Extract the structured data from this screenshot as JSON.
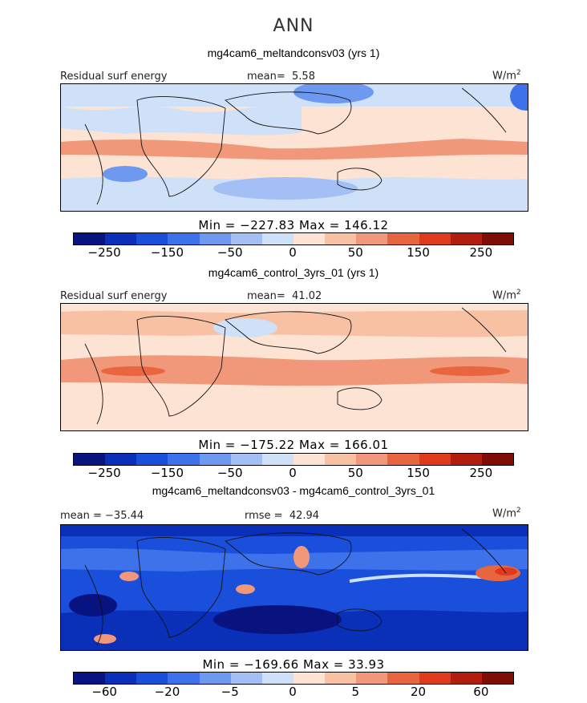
{
  "figure": {
    "title": "ANN"
  },
  "colors": {
    "scale": [
      "#08137f",
      "#0a2fb8",
      "#1a4fdb",
      "#3d72ea",
      "#6e99f0",
      "#a3bff4",
      "#cfe1f8",
      "#fde3d3",
      "#f9c1a4",
      "#f1977a",
      "#e8663f",
      "#e03a1d",
      "#b21e0e",
      "#7e0d08"
    ],
    "land": "#111111"
  },
  "panels": [
    {
      "title": "mg4cam6_meltandconsv03 (yrs 1)",
      "left_label": "Residual surf energy",
      "stat_label": "mean=",
      "stat_value": "5.58",
      "unit": "W/m",
      "unit_sup": "2",
      "min_max": "Min = −227.83 Max = 146.12"
    },
    {
      "title": "mg4cam6_control_3yrs_01 (yrs 1)",
      "left_label": "Residual surf energy",
      "stat_label": "mean=",
      "stat_value": "41.02",
      "unit": "W/m",
      "unit_sup": "2",
      "min_max": "Min = −175.22 Max = 166.01"
    },
    {
      "title": "mg4cam6_meltandconsv03 - mg4cam6_control_3yrs_01",
      "left_label": "mean = −35.44",
      "stat_label": "rmse =",
      "stat_value": "42.94",
      "unit": "W/m",
      "unit_sup": "2",
      "min_max": "Min = −169.66 Max = 33.93"
    }
  ],
  "chart_data": [
    {
      "type": "heatmap",
      "title": "mg4cam6_meltandconsv03 (yrs 1)",
      "field": "Residual surf energy",
      "units": "W/m2",
      "mean": 5.58,
      "min": -227.83,
      "max": 146.12,
      "colorbar_ticks": [
        "−250",
        "−150",
        "−50",
        "0",
        "50",
        "150",
        "250"
      ]
    },
    {
      "type": "heatmap",
      "title": "mg4cam6_control_3yrs_01 (yrs 1)",
      "field": "Residual surf energy",
      "units": "W/m2",
      "mean": 41.02,
      "min": -175.22,
      "max": 166.01,
      "colorbar_ticks": [
        "−250",
        "−150",
        "−50",
        "0",
        "50",
        "150",
        "250"
      ]
    },
    {
      "type": "heatmap",
      "title": "mg4cam6_meltandconsv03 - mg4cam6_control_3yrs_01",
      "field": "difference",
      "units": "W/m2",
      "mean": -35.44,
      "rmse": 42.94,
      "min": -169.66,
      "max": 33.93,
      "colorbar_ticks": [
        "−60",
        "−20",
        "−5",
        "0",
        "5",
        "20",
        "60"
      ]
    }
  ]
}
